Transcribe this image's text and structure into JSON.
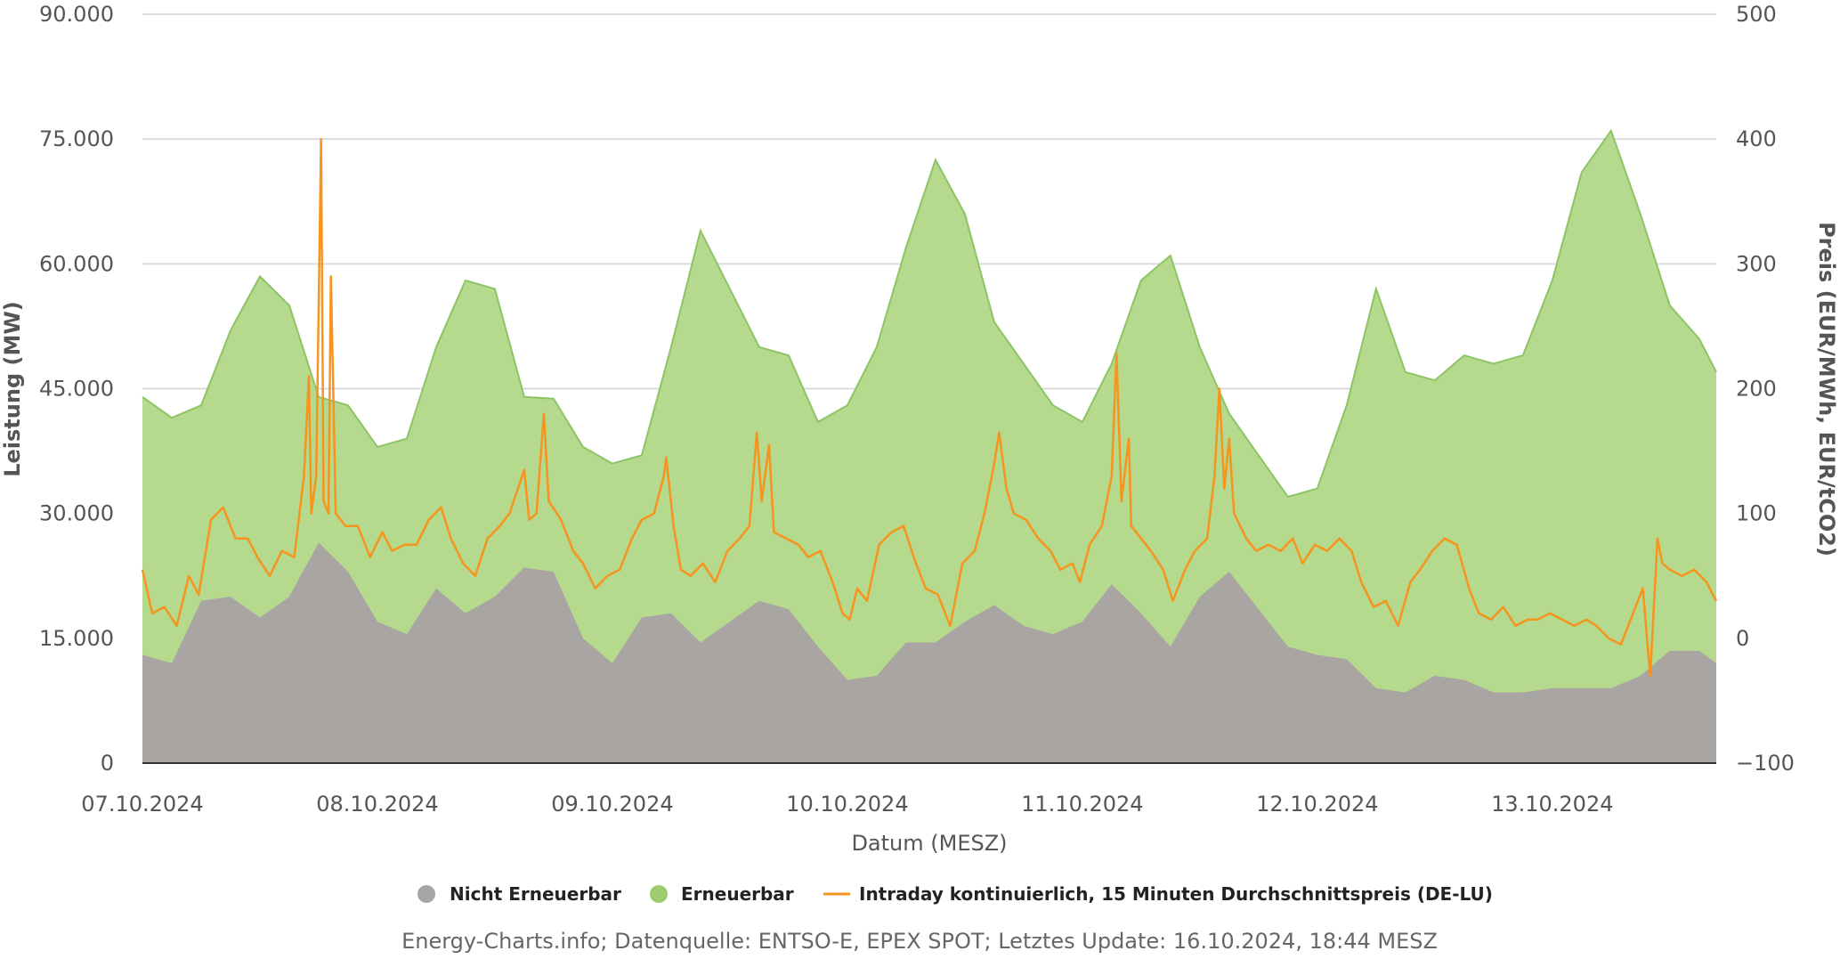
{
  "chart_data": {
    "type": "area",
    "xlabel": "Datum (MESZ)",
    "ylabel_left": "Leistung (MW)",
    "ylabel_right": "Preis (EUR/MWh, EUR/tCO2)",
    "xlim": [
      "2024-10-07T00:00",
      "2024-10-13T16:45"
    ],
    "x_ticks": [
      "07.10.2024",
      "08.10.2024",
      "09.10.2024",
      "10.10.2024",
      "11.10.2024",
      "12.10.2024",
      "13.10.2024"
    ],
    "ylim_left": [
      0,
      90000
    ],
    "y_ticks_left": [
      "0",
      "15.000",
      "30.000",
      "45.000",
      "60.000",
      "75.000",
      "90.000"
    ],
    "ylim_right": [
      -100,
      500
    ],
    "y_ticks_right": [
      "−100",
      "0",
      "100",
      "200",
      "300",
      "400",
      "500"
    ],
    "grid": true,
    "legend_position": "bottom",
    "footer": "Energy-Charts.info; Datenquelle: ENTSO-E, EPEX SPOT; Letztes Update: 16.10.2024, 18:44 MESZ",
    "area_x": [
      "2024-10-07T00:00",
      "2024-10-07T03:00",
      "2024-10-07T06:00",
      "2024-10-07T09:00",
      "2024-10-07T12:00",
      "2024-10-07T15:00",
      "2024-10-07T18:00",
      "2024-10-07T21:00",
      "2024-10-08T00:00",
      "2024-10-08T03:00",
      "2024-10-08T06:00",
      "2024-10-08T09:00",
      "2024-10-08T12:00",
      "2024-10-08T15:00",
      "2024-10-08T18:00",
      "2024-10-08T21:00",
      "2024-10-09T00:00",
      "2024-10-09T03:00",
      "2024-10-09T06:00",
      "2024-10-09T09:00",
      "2024-10-09T12:00",
      "2024-10-09T15:00",
      "2024-10-09T18:00",
      "2024-10-09T21:00",
      "2024-10-10T00:00",
      "2024-10-10T03:00",
      "2024-10-10T06:00",
      "2024-10-10T09:00",
      "2024-10-10T12:00",
      "2024-10-10T15:00",
      "2024-10-10T18:00",
      "2024-10-10T21:00",
      "2024-10-11T00:00",
      "2024-10-11T03:00",
      "2024-10-11T06:00",
      "2024-10-11T09:00",
      "2024-10-11T12:00",
      "2024-10-11T15:00",
      "2024-10-11T18:00",
      "2024-10-11T21:00",
      "2024-10-12T00:00",
      "2024-10-12T03:00",
      "2024-10-12T06:00",
      "2024-10-12T09:00",
      "2024-10-12T12:00",
      "2024-10-12T15:00",
      "2024-10-12T18:00",
      "2024-10-12T21:00",
      "2024-10-13T00:00",
      "2024-10-13T03:00",
      "2024-10-13T06:00",
      "2024-10-13T09:00",
      "2024-10-13T12:00",
      "2024-10-13T15:00",
      "2024-10-13T16:45"
    ],
    "series": [
      {
        "name": "Nicht Erneuerbar",
        "color": "#a9a5a3",
        "unit": "MW",
        "values": [
          13000,
          12000,
          19500,
          20000,
          17500,
          20000,
          26500,
          23000,
          17000,
          15500,
          21000,
          18000,
          20000,
          23500,
          23000,
          15000,
          12000,
          17500,
          18000,
          14500,
          17000,
          19500,
          18500,
          14000,
          10000,
          10500,
          14500,
          14500,
          17000,
          19000,
          16500,
          15500,
          17000,
          21500,
          18000,
          14000,
          20000,
          23000,
          18500,
          14000,
          13000,
          12500,
          9000,
          8500,
          10500,
          10000,
          8500,
          8500,
          9000,
          9000,
          9000,
          10500,
          13500,
          13500,
          12000
        ]
      },
      {
        "name": "Erneuerbar",
        "color": "#b5d98d",
        "unit": "MW",
        "stacked_total_values": [
          44000,
          41500,
          43000,
          52000,
          58500,
          55000,
          44000,
          43000,
          38000,
          39000,
          50000,
          58000,
          57000,
          44000,
          43800,
          38000,
          36000,
          37000,
          50000,
          64000,
          57000,
          50000,
          49000,
          41000,
          43000,
          50000,
          62000,
          72500,
          66000,
          53000,
          48000,
          43000,
          41000,
          48000,
          58000,
          61000,
          50000,
          42000,
          37000,
          32000,
          33000,
          43000,
          57000,
          47000,
          46000,
          49000,
          48000,
          49000,
          58000,
          71000,
          76000,
          66000,
          55000,
          51000,
          47000
        ]
      },
      {
        "name": "Intraday kontinuierlich, 15 Minuten Durchschnittspreis (DE-LU)",
        "color": "#f7941d",
        "unit": "EUR/MWh",
        "axis": "right",
        "x": [
          "2024-10-07T00:00",
          "2024-10-07T01:00",
          "2024-10-07T02:15",
          "2024-10-07T03:30",
          "2024-10-07T04:45",
          "2024-10-07T05:45",
          "2024-10-07T07:00",
          "2024-10-07T08:15",
          "2024-10-07T09:30",
          "2024-10-07T10:45",
          "2024-10-07T11:45",
          "2024-10-07T13:00",
          "2024-10-07T14:15",
          "2024-10-07T15:30",
          "2024-10-07T16:30",
          "2024-10-07T17:00",
          "2024-10-07T17:15",
          "2024-10-07T17:45",
          "2024-10-07T18:15",
          "2024-10-07T18:30",
          "2024-10-07T19:00",
          "2024-10-07T19:15",
          "2024-10-07T19:45",
          "2024-10-07T20:45",
          "2024-10-07T22:00",
          "2024-10-07T23:15",
          "2024-10-08T00:30",
          "2024-10-08T01:30",
          "2024-10-08T02:45",
          "2024-10-08T04:00",
          "2024-10-08T05:15",
          "2024-10-08T06:30",
          "2024-10-08T07:30",
          "2024-10-08T08:45",
          "2024-10-08T10:00",
          "2024-10-08T11:15",
          "2024-10-08T12:30",
          "2024-10-08T13:30",
          "2024-10-08T15:00",
          "2024-10-08T15:30",
          "2024-10-08T16:15",
          "2024-10-08T17:00",
          "2024-10-08T17:30",
          "2024-10-08T18:45",
          "2024-10-08T20:00",
          "2024-10-08T21:00",
          "2024-10-08T22:15",
          "2024-10-08T23:30",
          "2024-10-09T00:45",
          "2024-10-09T02:00",
          "2024-10-09T03:00",
          "2024-10-09T04:15",
          "2024-10-09T05:15",
          "2024-10-09T05:30",
          "2024-10-09T06:15",
          "2024-10-09T07:00",
          "2024-10-09T08:00",
          "2024-10-09T09:15",
          "2024-10-09T10:30",
          "2024-10-09T11:45",
          "2024-10-09T13:00",
          "2024-10-09T14:00",
          "2024-10-09T14:45",
          "2024-10-09T15:15",
          "2024-10-09T16:00",
          "2024-10-09T16:30",
          "2024-10-09T17:45",
          "2024-10-09T19:00",
          "2024-10-09T20:00",
          "2024-10-09T21:15",
          "2024-10-09T22:30",
          "2024-10-09T23:30",
          "2024-10-10T00:15",
          "2024-10-10T01:00",
          "2024-10-10T02:00",
          "2024-10-10T03:15",
          "2024-10-10T04:30",
          "2024-10-10T05:45",
          "2024-10-10T07:00",
          "2024-10-10T08:00",
          "2024-10-10T09:15",
          "2024-10-10T10:30",
          "2024-10-10T11:45",
          "2024-10-10T13:00",
          "2024-10-10T14:00",
          "2024-10-10T15:00",
          "2024-10-10T15:30",
          "2024-10-10T16:15",
          "2024-10-10T17:00",
          "2024-10-10T18:15",
          "2024-10-10T19:30",
          "2024-10-10T20:45",
          "2024-10-10T21:45",
          "2024-10-10T23:00",
          "2024-10-10T23:45",
          "2024-10-11T00:45",
          "2024-10-11T02:00",
          "2024-10-11T03:00",
          "2024-10-11T03:30",
          "2024-10-11T04:00",
          "2024-10-11T04:45",
          "2024-10-11T05:00",
          "2024-10-11T06:00",
          "2024-10-11T07:00",
          "2024-10-11T08:15",
          "2024-10-11T09:15",
          "2024-10-11T10:30",
          "2024-10-11T11:30",
          "2024-10-11T12:45",
          "2024-10-11T13:30",
          "2024-10-11T14:00",
          "2024-10-11T14:30",
          "2024-10-11T15:00",
          "2024-10-11T15:30",
          "2024-10-11T16:45",
          "2024-10-11T17:45",
          "2024-10-11T19:00",
          "2024-10-11T20:15",
          "2024-10-11T21:30",
          "2024-10-11T22:30",
          "2024-10-11T23:45",
          "2024-10-12T01:00",
          "2024-10-12T02:15",
          "2024-10-12T03:30",
          "2024-10-12T04:30",
          "2024-10-12T05:45",
          "2024-10-12T07:00",
          "2024-10-12T08:15",
          "2024-10-12T09:30",
          "2024-10-12T10:30",
          "2024-10-12T11:45",
          "2024-10-12T13:00",
          "2024-10-12T14:15",
          "2024-10-12T15:30",
          "2024-10-12T16:30",
          "2024-10-12T17:45",
          "2024-10-12T19:00",
          "2024-10-12T20:15",
          "2024-10-12T21:30",
          "2024-10-12T22:30",
          "2024-10-12T23:45",
          "2024-10-13T01:00",
          "2024-10-13T02:15",
          "2024-10-13T03:30",
          "2024-10-13T04:30",
          "2024-10-13T05:45",
          "2024-10-13T07:00",
          "2024-10-13T08:15",
          "2024-10-13T09:15",
          "2024-10-13T10:00",
          "2024-10-13T10:45",
          "2024-10-13T11:15",
          "2024-10-13T12:00",
          "2024-10-13T13:15",
          "2024-10-13T14:30",
          "2024-10-13T15:45",
          "2024-10-13T16:45"
        ],
        "values": [
          55,
          20,
          25,
          10,
          50,
          35,
          95,
          105,
          80,
          80,
          65,
          50,
          70,
          65,
          130,
          210,
          100,
          130,
          400,
          110,
          100,
          290,
          100,
          90,
          90,
          65,
          85,
          70,
          75,
          75,
          95,
          105,
          80,
          60,
          50,
          80,
          90,
          100,
          135,
          95,
          100,
          180,
          110,
          95,
          70,
          60,
          40,
          50,
          55,
          80,
          95,
          100,
          130,
          145,
          90,
          55,
          50,
          60,
          45,
          70,
          80,
          90,
          165,
          110,
          155,
          85,
          80,
          75,
          65,
          70,
          45,
          20,
          15,
          40,
          30,
          75,
          85,
          90,
          60,
          40,
          35,
          10,
          60,
          70,
          100,
          140,
          165,
          120,
          100,
          95,
          80,
          70,
          55,
          60,
          45,
          75,
          90,
          130,
          228,
          110,
          160,
          90,
          80,
          70,
          55,
          30,
          55,
          70,
          80,
          130,
          200,
          120,
          160,
          100,
          80,
          70,
          75,
          70,
          80,
          60,
          75,
          70,
          80,
          70,
          45,
          25,
          30,
          10,
          45,
          55,
          70,
          80,
          75,
          40,
          20,
          15,
          25,
          10,
          15,
          15,
          20,
          15,
          10,
          15,
          10,
          0,
          -5,
          20,
          40,
          -30,
          80,
          60,
          55,
          50,
          55,
          45,
          30
        ]
      }
    ]
  }
}
